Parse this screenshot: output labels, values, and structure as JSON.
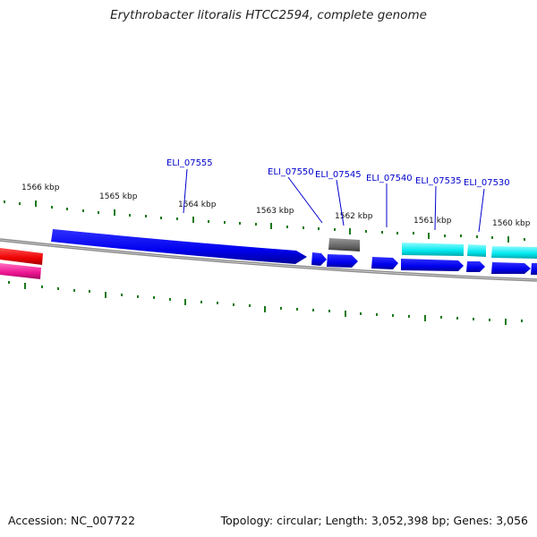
{
  "title": "Erythrobacter litoralis HTCC2594, complete genome",
  "footer": {
    "accession": "Accession: NC_007722",
    "summary": "Topology: circular; Length: 3,052,398 bp; Genes: 3,056"
  },
  "scale_labels": [
    "1566 kbp",
    "1565 kbp",
    "1564 kbp",
    "1563 kbp",
    "1562 kbp",
    "1561 kbp",
    "1560 kbp"
  ],
  "gene_labels": [
    "ELI_07555",
    "ELI_07550",
    "ELI_07545",
    "ELI_07540",
    "ELI_07535",
    "ELI_07530"
  ],
  "colors": {
    "backbone": "#8a8a8a",
    "tick": "#1a7a1a",
    "forward_gene": "#0000ee",
    "cyan_gene": "#00e5ee",
    "gray_gene": "#666666",
    "red_gene": "#ee0000",
    "pink_gene": "#ee1493",
    "label": "#0000cc"
  }
}
